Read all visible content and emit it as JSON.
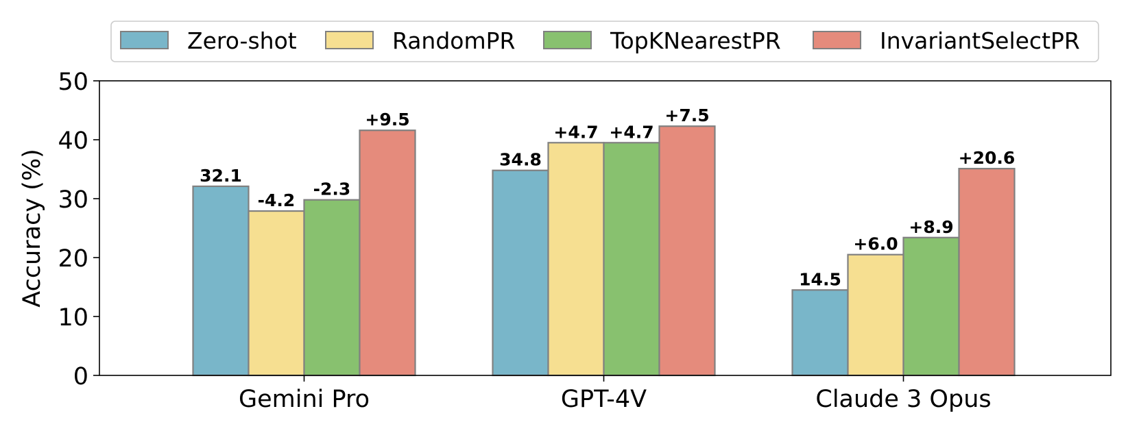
{
  "chart_data": {
    "type": "bar",
    "title": "",
    "xlabel": "",
    "ylabel": "Accuracy (%)",
    "ylim": [
      0,
      50
    ],
    "yticks": [
      0,
      10,
      20,
      30,
      40,
      50
    ],
    "grid": false,
    "legend_position": "top-center",
    "categories": [
      "Gemini Pro",
      "GPT-4V",
      "Claude 3 Opus"
    ],
    "series": [
      {
        "name": "Zero-shot",
        "color": "#79b6c9",
        "values": [
          32.1,
          34.8,
          14.5
        ],
        "labels": [
          "32.1",
          "34.8",
          "14.5"
        ]
      },
      {
        "name": "RandomPR",
        "color": "#f6df91",
        "values": [
          27.9,
          39.5,
          20.5
        ],
        "labels": [
          "-4.2",
          "+4.7",
          "+6.0"
        ]
      },
      {
        "name": "TopKNearestPR",
        "color": "#88c16f",
        "values": [
          29.8,
          39.5,
          23.4
        ],
        "labels": [
          "-2.3",
          "+4.7",
          "+8.9"
        ]
      },
      {
        "name": "InvariantSelectPR",
        "color": "#e58b7c",
        "values": [
          41.6,
          42.3,
          35.1
        ],
        "labels": [
          "+9.5",
          "+7.5",
          "+20.6"
        ]
      }
    ]
  }
}
